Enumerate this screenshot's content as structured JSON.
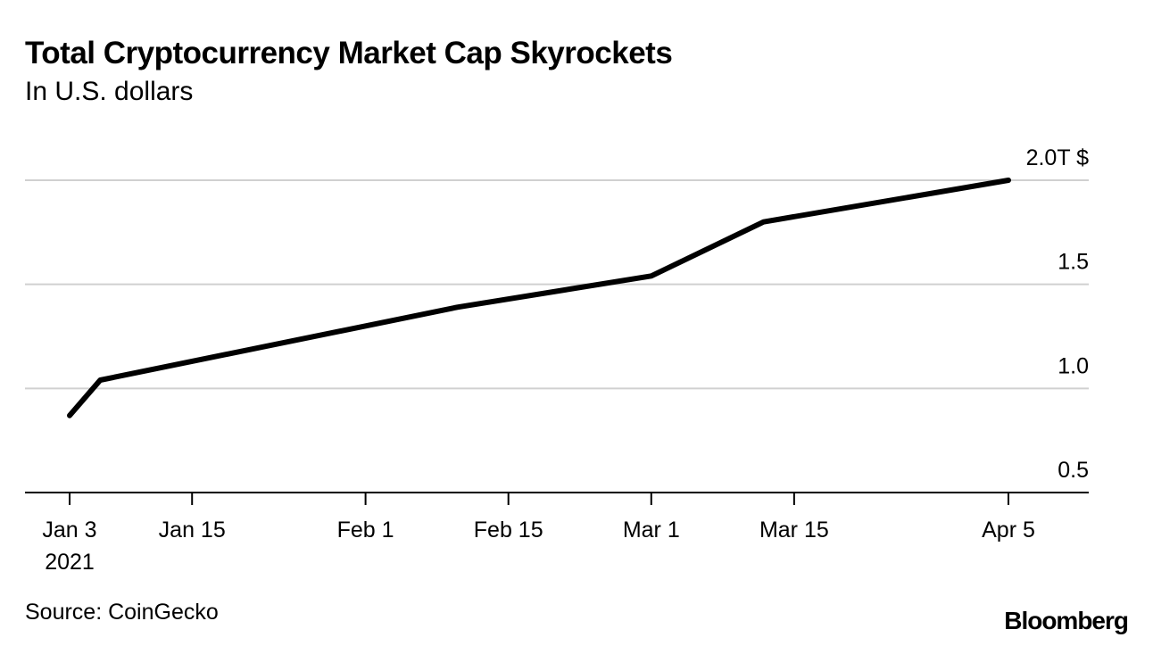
{
  "chart_data": {
    "type": "line",
    "title": "Total Cryptocurrency Market Cap Skyrockets",
    "subtitle": "In U.S. dollars",
    "xlabel": "",
    "ylabel": "",
    "unit_label": "2.0T $",
    "ylim": [
      0.5,
      2.0
    ],
    "yticks": [
      {
        "value": 0.5,
        "label": "0.5"
      },
      {
        "value": 1.0,
        "label": "1.0"
      },
      {
        "value": 1.5,
        "label": "1.5"
      },
      {
        "value": 2.0,
        "label": "2.0T $"
      }
    ],
    "x_day_range": [
      0,
      92
    ],
    "xticks": [
      {
        "day": 0,
        "label": "Jan 3",
        "sublabel": "2021"
      },
      {
        "day": 12,
        "label": "Jan 15"
      },
      {
        "day": 29,
        "label": "Feb 1"
      },
      {
        "day": 43,
        "label": "Feb 15"
      },
      {
        "day": 57,
        "label": "Mar 1"
      },
      {
        "day": 71,
        "label": "Mar 15"
      },
      {
        "day": 92,
        "label": "Apr 5"
      }
    ],
    "series": [
      {
        "name": "Total market cap",
        "color": "#000000",
        "points": [
          {
            "day": 0,
            "value": 0.87
          },
          {
            "day": 3,
            "value": 1.04
          },
          {
            "day": 38,
            "value": 1.39
          },
          {
            "day": 57,
            "value": 1.54
          },
          {
            "day": 68,
            "value": 1.8
          },
          {
            "day": 92,
            "value": 2.0
          }
        ]
      }
    ]
  },
  "footer": {
    "source": "Source: CoinGecko",
    "brand": "Bloomberg"
  }
}
